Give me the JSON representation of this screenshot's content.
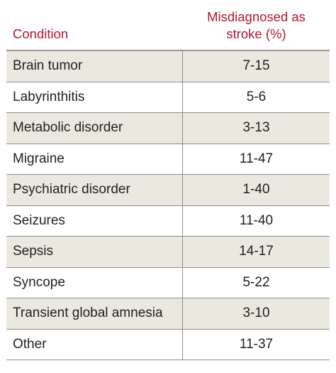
{
  "table": {
    "headers": {
      "condition": "Condition",
      "percent_line1": "Misdiagnosed as",
      "percent_line2": "stroke (%)"
    },
    "rows": [
      {
        "condition": "Brain tumor",
        "percent": "7-15"
      },
      {
        "condition": "Labyrinthitis",
        "percent": "5-6"
      },
      {
        "condition": "Metabolic disorder",
        "percent": "3-13"
      },
      {
        "condition": "Migraine",
        "percent": "11-47"
      },
      {
        "condition": "Psychiatric disorder",
        "percent": "1-40"
      },
      {
        "condition": "Seizures",
        "percent": "11-40"
      },
      {
        "condition": "Sepsis",
        "percent": "14-17"
      },
      {
        "condition": "Syncope",
        "percent": "5-22"
      },
      {
        "condition": "Transient global amnesia",
        "percent": "3-10"
      },
      {
        "condition": "Other",
        "percent": "11-37"
      }
    ]
  },
  "colors": {
    "header_text": "#b5152b",
    "shaded_row": "#ebe8e0",
    "body_text": "#231f20",
    "rule": "#8c8c8c"
  }
}
